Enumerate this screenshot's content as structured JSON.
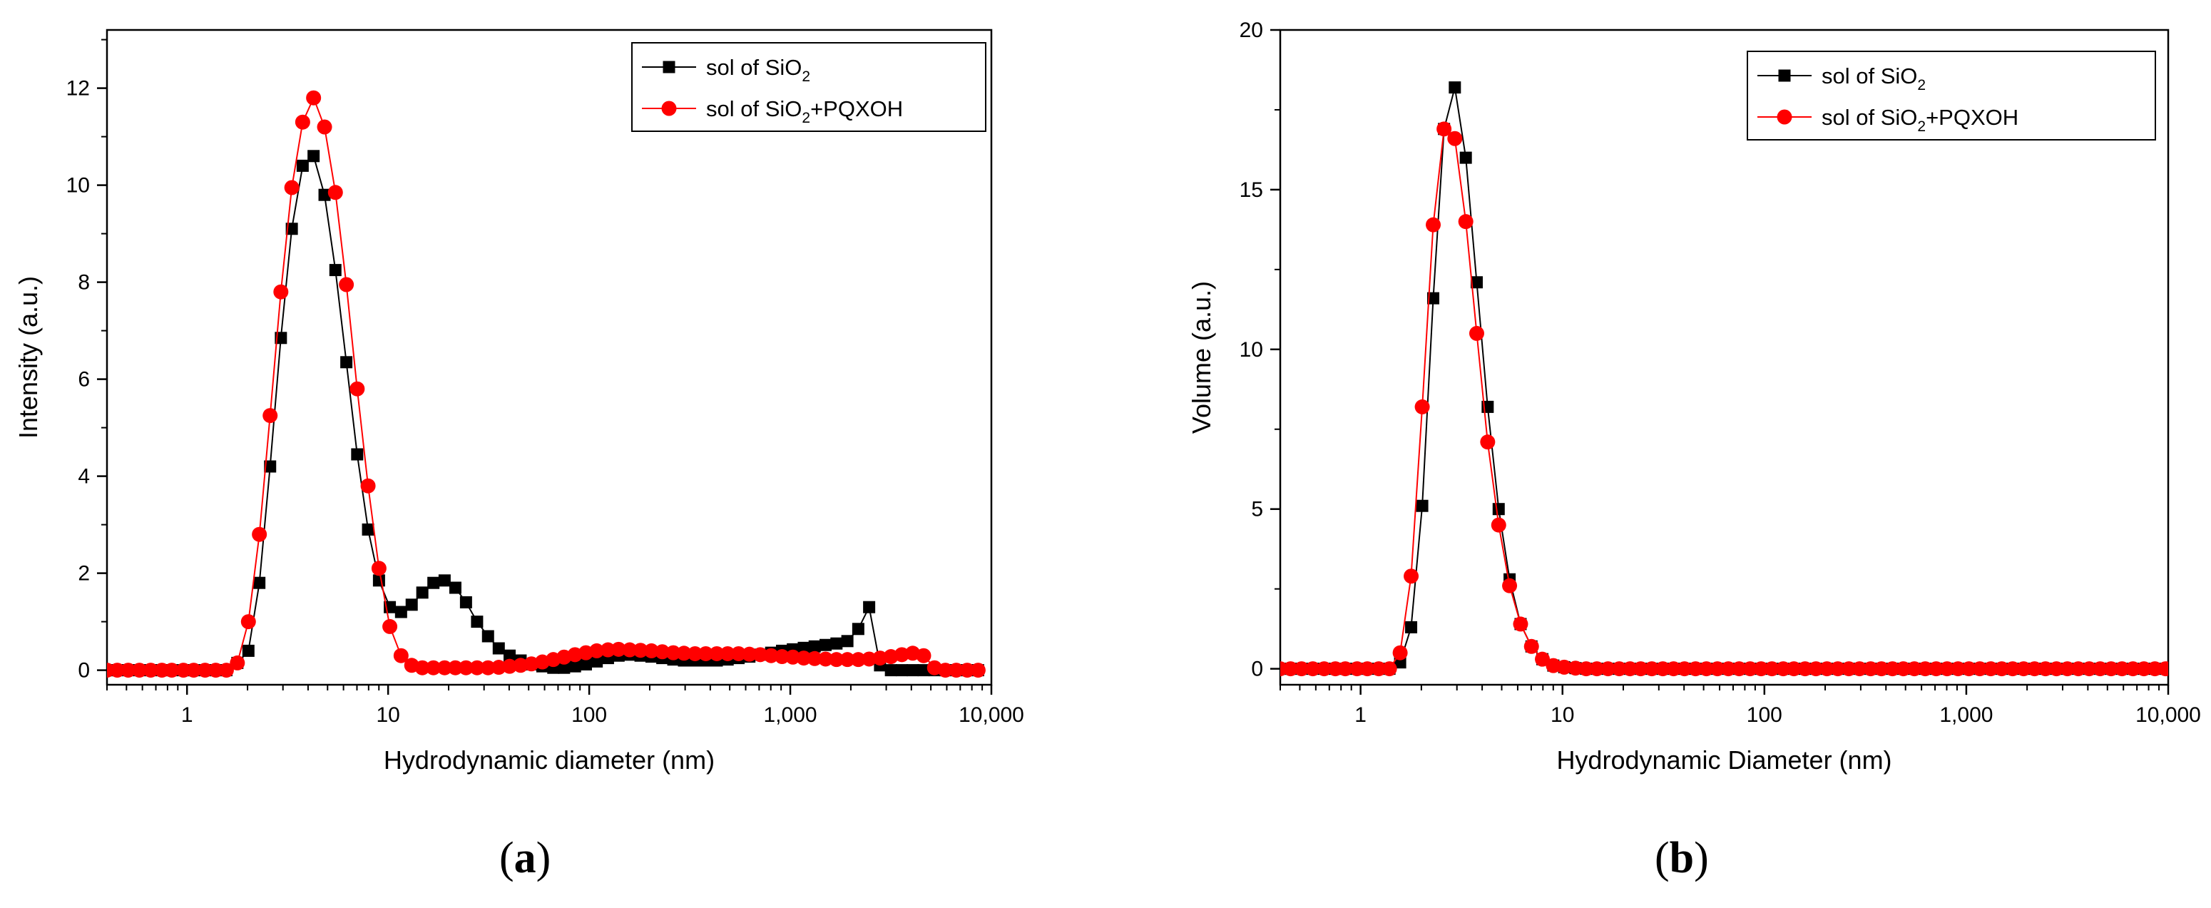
{
  "colors": {
    "series1": "#000000",
    "series2": "#ff0000",
    "axis": "#000000"
  },
  "panels": [
    {
      "letter": "a"
    },
    {
      "letter": "b"
    }
  ],
  "chart_data": [
    {
      "type": "line",
      "panel": "a",
      "xscale": "log",
      "xlim": [
        0.4,
        10000
      ],
      "ylim": [
        -0.3,
        13.2
      ],
      "xlabel": "Hydrodynamic diameter (nm)",
      "ylabel": "Intensity (a.u.)",
      "xticks": [
        1,
        10,
        100,
        1000,
        10000
      ],
      "xtick_labels": [
        "1",
        "10",
        "100",
        "1,000",
        "10,000"
      ],
      "yticks": [
        0,
        2,
        4,
        6,
        8,
        10,
        12
      ],
      "ytick_labels": [
        "0",
        "2",
        "4",
        "6",
        "8",
        "10",
        "12"
      ],
      "legend_position": "top-right",
      "series": [
        {
          "name": "sol of SiO2",
          "legend_parts": [
            "sol of SiO",
            "2",
            ""
          ],
          "marker": "square",
          "x": [
            0.4,
            0.45,
            0.51,
            0.58,
            0.66,
            0.75,
            0.84,
            0.96,
            1.08,
            1.23,
            1.39,
            1.57,
            1.78,
            2.02,
            2.29,
            2.59,
            2.93,
            3.32,
            3.76,
            4.26,
            4.83,
            5.47,
            6.2,
            7.02,
            7.95,
            9.01,
            10.2,
            11.6,
            13.1,
            14.8,
            16.8,
            19.1,
            21.6,
            24.4,
            27.7,
            31.4,
            35.5,
            40.2,
            45.6,
            51.6,
            58.5,
            66.3,
            75,
            85,
            96.3,
            109,
            124,
            140,
            159,
            180,
            204,
            231,
            262,
            296,
            336,
            380,
            431,
            488,
            553,
            626,
            709,
            803,
            910,
            1030,
            1167,
            1322,
            1498,
            1697,
            1923,
            2178,
            2467,
            2795,
            3166,
            3587,
            4063,
            4603,
            5214,
            5906,
            6690,
            7580,
            8590
          ],
          "y": [
            0,
            0,
            0,
            0,
            0,
            0,
            0,
            0,
            0,
            0,
            0,
            0,
            0.15,
            0.4,
            1.8,
            4.2,
            6.85,
            9.1,
            10.4,
            10.6,
            9.8,
            8.25,
            6.35,
            4.45,
            2.9,
            1.85,
            1.3,
            1.2,
            1.35,
            1.6,
            1.8,
            1.85,
            1.7,
            1.4,
            1.0,
            0.7,
            0.45,
            0.3,
            0.2,
            0.12,
            0.08,
            0.05,
            0.05,
            0.08,
            0.12,
            0.18,
            0.25,
            0.3,
            0.32,
            0.3,
            0.28,
            0.25,
            0.22,
            0.2,
            0.2,
            0.2,
            0.2,
            0.22,
            0.25,
            0.28,
            0.32,
            0.36,
            0.4,
            0.43,
            0.46,
            0.49,
            0.52,
            0.55,
            0.6,
            0.85,
            1.3,
            0.1,
            0,
            0,
            0,
            0,
            0,
            0,
            0,
            0,
            0
          ]
        },
        {
          "name": "sol of SiO2+PQXOH",
          "legend_parts": [
            "sol of SiO",
            "2",
            "+PQXOH"
          ],
          "marker": "circle",
          "x": [
            0.4,
            0.45,
            0.51,
            0.58,
            0.66,
            0.75,
            0.84,
            0.96,
            1.08,
            1.23,
            1.39,
            1.57,
            1.78,
            2.02,
            2.29,
            2.59,
            2.93,
            3.32,
            3.76,
            4.26,
            4.83,
            5.47,
            6.2,
            7.02,
            7.95,
            9.01,
            10.2,
            11.6,
            13.1,
            14.8,
            16.8,
            19.1,
            21.6,
            24.4,
            27.7,
            31.4,
            35.5,
            40.2,
            45.6,
            51.6,
            58.5,
            66.3,
            75,
            85,
            96.3,
            109,
            124,
            140,
            159,
            180,
            204,
            231,
            262,
            296,
            336,
            380,
            431,
            488,
            553,
            626,
            709,
            803,
            910,
            1030,
            1167,
            1322,
            1498,
            1697,
            1923,
            2178,
            2467,
            2795,
            3166,
            3587,
            4063,
            4603,
            5214,
            5906,
            6690,
            7580,
            8590
          ],
          "y": [
            0,
            0,
            0,
            0,
            0,
            0,
            0,
            0,
            0,
            0,
            0,
            0,
            0.15,
            1.0,
            2.8,
            5.25,
            7.8,
            9.95,
            11.3,
            11.8,
            11.2,
            9.85,
            7.95,
            5.8,
            3.8,
            2.1,
            0.9,
            0.3,
            0.1,
            0.05,
            0.05,
            0.05,
            0.05,
            0.05,
            0.05,
            0.05,
            0.06,
            0.08,
            0.1,
            0.13,
            0.17,
            0.22,
            0.27,
            0.32,
            0.36,
            0.4,
            0.42,
            0.43,
            0.42,
            0.41,
            0.4,
            0.38,
            0.36,
            0.35,
            0.34,
            0.34,
            0.34,
            0.34,
            0.34,
            0.33,
            0.32,
            0.3,
            0.28,
            0.27,
            0.25,
            0.24,
            0.23,
            0.22,
            0.22,
            0.22,
            0.23,
            0.25,
            0.28,
            0.32,
            0.35,
            0.3,
            0.05,
            0,
            0,
            0,
            0
          ]
        }
      ]
    },
    {
      "type": "line",
      "panel": "b",
      "xscale": "log",
      "xlim": [
        0.4,
        10000
      ],
      "ylim": [
        -0.5,
        20
      ],
      "xlabel": "Hydrodynamic Diameter (nm)",
      "ylabel": "Volume (a.u.)",
      "xticks": [
        1,
        10,
        100,
        1000,
        10000
      ],
      "xtick_labels": [
        "1",
        "10",
        "100",
        "1,000",
        "10,000"
      ],
      "yticks": [
        0,
        5,
        10,
        15,
        20
      ],
      "ytick_labels": [
        "0",
        "5",
        "10",
        "15",
        "20"
      ],
      "legend_position": "top-right",
      "series": [
        {
          "name": "sol of SiO2",
          "legend_parts": [
            "sol of SiO",
            "2",
            ""
          ],
          "marker": "square",
          "x": [
            0.4,
            0.45,
            0.51,
            0.58,
            0.66,
            0.75,
            0.84,
            0.96,
            1.08,
            1.23,
            1.39,
            1.57,
            1.78,
            2.02,
            2.29,
            2.59,
            2.93,
            3.32,
            3.76,
            4.26,
            4.83,
            5.47,
            6.2,
            7.02,
            7.95,
            9.01,
            10.2,
            11.6,
            13.1,
            14.8,
            16.8,
            19.1,
            21.6,
            24.4,
            27.7,
            31.4,
            35.5,
            40.2,
            45.6,
            51.6,
            58.5,
            66.3,
            75,
            85,
            96.3,
            109,
            124,
            140,
            159,
            180,
            204,
            231,
            262,
            296,
            336,
            380,
            431,
            488,
            553,
            626,
            709,
            803,
            910,
            1030,
            1167,
            1322,
            1498,
            1697,
            1923,
            2178,
            2467,
            2795,
            3166,
            3587,
            4063,
            4603,
            5214,
            5906,
            6690,
            7580,
            8590,
            9700
          ],
          "y": [
            0,
            0,
            0,
            0,
            0,
            0,
            0,
            0,
            0,
            0,
            0,
            0.2,
            1.3,
            5.1,
            11.6,
            16.9,
            18.2,
            16.0,
            12.1,
            8.2,
            5.0,
            2.8,
            1.4,
            0.7,
            0.3,
            0.1,
            0.05,
            0.02,
            0,
            0,
            0,
            0,
            0,
            0,
            0,
            0,
            0,
            0,
            0,
            0,
            0,
            0,
            0,
            0,
            0,
            0,
            0,
            0,
            0,
            0,
            0,
            0,
            0,
            0,
            0,
            0,
            0,
            0,
            0,
            0,
            0,
            0,
            0,
            0,
            0,
            0,
            0,
            0,
            0,
            0,
            0,
            0,
            0,
            0,
            0,
            0,
            0,
            0,
            0,
            0,
            0,
            0
          ]
        },
        {
          "name": "sol of SiO2+PQXOH",
          "legend_parts": [
            "sol of SiO",
            "2",
            "+PQXOH"
          ],
          "marker": "circle",
          "x": [
            0.4,
            0.45,
            0.51,
            0.58,
            0.66,
            0.75,
            0.84,
            0.96,
            1.08,
            1.23,
            1.39,
            1.57,
            1.78,
            2.02,
            2.29,
            2.59,
            2.93,
            3.32,
            3.76,
            4.26,
            4.83,
            5.47,
            6.2,
            7.02,
            7.95,
            9.01,
            10.2,
            11.6,
            13.1,
            14.8,
            16.8,
            19.1,
            21.6,
            24.4,
            27.7,
            31.4,
            35.5,
            40.2,
            45.6,
            51.6,
            58.5,
            66.3,
            75,
            85,
            96.3,
            109,
            124,
            140,
            159,
            180,
            204,
            231,
            262,
            296,
            336,
            380,
            431,
            488,
            553,
            626,
            709,
            803,
            910,
            1030,
            1167,
            1322,
            1498,
            1697,
            1923,
            2178,
            2467,
            2795,
            3166,
            3587,
            4063,
            4603,
            5214,
            5906,
            6690,
            7580,
            8590,
            9700
          ],
          "y": [
            0,
            0,
            0,
            0,
            0,
            0,
            0,
            0,
            0,
            0,
            0,
            0.5,
            2.9,
            8.2,
            13.9,
            16.9,
            16.6,
            14.0,
            10.5,
            7.1,
            4.5,
            2.6,
            1.4,
            0.7,
            0.3,
            0.1,
            0.05,
            0.02,
            0,
            0,
            0,
            0,
            0,
            0,
            0,
            0,
            0,
            0,
            0,
            0,
            0,
            0,
            0,
            0,
            0,
            0,
            0,
            0,
            0,
            0,
            0,
            0,
            0,
            0,
            0,
            0,
            0,
            0,
            0,
            0,
            0,
            0,
            0,
            0,
            0,
            0,
            0,
            0,
            0,
            0,
            0,
            0,
            0,
            0,
            0,
            0,
            0,
            0,
            0,
            0,
            0,
            0
          ]
        }
      ]
    }
  ]
}
